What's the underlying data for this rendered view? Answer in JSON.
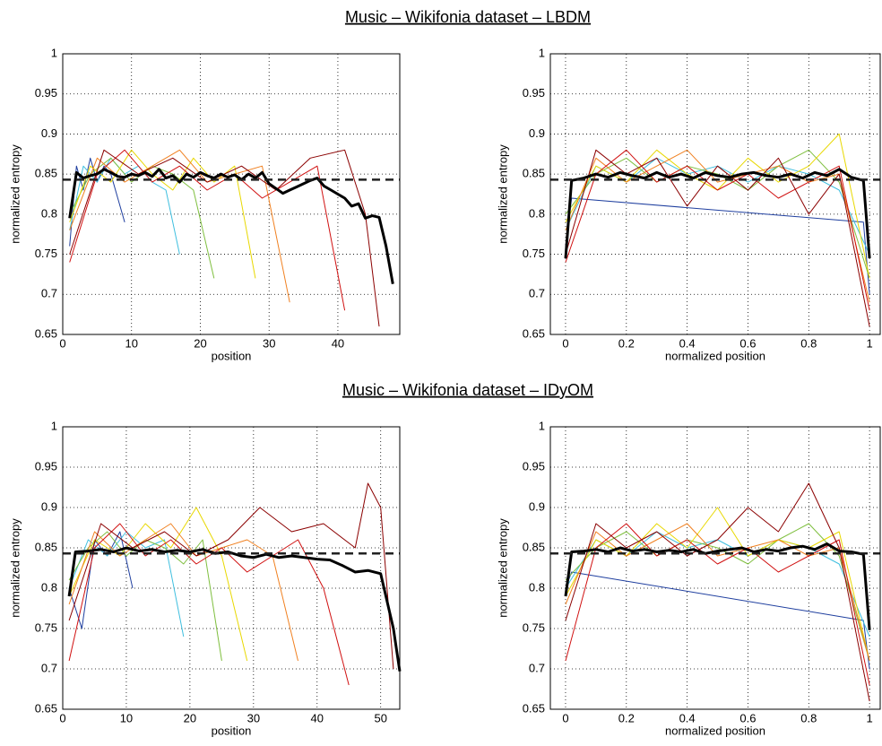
{
  "chart_data": [
    {
      "type": "line",
      "title": "Music – Wikifonia dataset – LBDM",
      "xlabel": "position",
      "ylabel": "normalized entropy",
      "xlim": [
        0,
        49
      ],
      "ylim": [
        0.65,
        1
      ],
      "xticks": [
        0,
        10,
        20,
        30,
        40
      ],
      "yticks": [
        0.65,
        0.7,
        0.75,
        0.8,
        0.85,
        0.9,
        0.95,
        1
      ],
      "grid": true,
      "reference_line": {
        "value": 0.843,
        "color": "#222222"
      },
      "series": [
        {
          "color": "#1f3f9f",
          "x": [
            1,
            2,
            3,
            4,
            5,
            6,
            7,
            8,
            9
          ],
          "values": [
            0.76,
            0.86,
            0.83,
            0.87,
            0.84,
            0.86,
            0.85,
            0.82,
            0.79
          ]
        },
        {
          "color": "#3fbfdf",
          "x": [
            1,
            3,
            5,
            7,
            9,
            11,
            13,
            15,
            17
          ],
          "values": [
            0.78,
            0.86,
            0.84,
            0.87,
            0.85,
            0.86,
            0.84,
            0.83,
            0.75
          ]
        },
        {
          "color": "#7fbf3f",
          "x": [
            1,
            4,
            7,
            10,
            13,
            16,
            19,
            22
          ],
          "values": [
            0.8,
            0.85,
            0.87,
            0.84,
            0.86,
            0.85,
            0.83,
            0.72
          ]
        },
        {
          "color": "#e8d800",
          "x": [
            1,
            4,
            7,
            10,
            13,
            16,
            19,
            22,
            25,
            28
          ],
          "values": [
            0.79,
            0.86,
            0.84,
            0.88,
            0.85,
            0.83,
            0.87,
            0.84,
            0.86,
            0.72
          ]
        },
        {
          "color": "#f08020",
          "x": [
            1,
            5,
            9,
            13,
            17,
            21,
            25,
            29,
            33
          ],
          "values": [
            0.78,
            0.87,
            0.84,
            0.86,
            0.88,
            0.84,
            0.85,
            0.86,
            0.69
          ]
        },
        {
          "color": "#d01010",
          "x": [
            1,
            5,
            9,
            13,
            17,
            21,
            25,
            29,
            33,
            37,
            41
          ],
          "values": [
            0.74,
            0.85,
            0.88,
            0.84,
            0.86,
            0.83,
            0.85,
            0.82,
            0.84,
            0.86,
            0.68
          ]
        },
        {
          "color": "#8b0000",
          "x": [
            1,
            6,
            11,
            16,
            21,
            26,
            31,
            36,
            41,
            44,
            46
          ],
          "values": [
            0.75,
            0.88,
            0.85,
            0.87,
            0.84,
            0.86,
            0.83,
            0.87,
            0.88,
            0.8,
            0.66
          ]
        },
        {
          "color": "#000000",
          "width": 3,
          "x": [
            1,
            2,
            3,
            4,
            5,
            6,
            7,
            8,
            9,
            10,
            11,
            12,
            13,
            14,
            15,
            16,
            17,
            18,
            19,
            20,
            21,
            22,
            23,
            24,
            25,
            26,
            27,
            28,
            29,
            30,
            31,
            32,
            33,
            34,
            35,
            36,
            37,
            38,
            39,
            40,
            41,
            42,
            43,
            44,
            45,
            46,
            47,
            48
          ],
          "values": [
            0.795,
            0.852,
            0.845,
            0.848,
            0.85,
            0.856,
            0.852,
            0.847,
            0.846,
            0.85,
            0.848,
            0.852,
            0.847,
            0.856,
            0.845,
            0.848,
            0.84,
            0.85,
            0.846,
            0.852,
            0.848,
            0.845,
            0.85,
            0.846,
            0.849,
            0.843,
            0.85,
            0.845,
            0.852,
            0.838,
            0.832,
            0.826,
            0.83,
            0.834,
            0.838,
            0.842,
            0.845,
            0.835,
            0.83,
            0.825,
            0.82,
            0.81,
            0.813,
            0.795,
            0.798,
            0.796,
            0.76,
            0.713
          ]
        }
      ]
    },
    {
      "type": "line",
      "xlabel": "normalized position",
      "ylabel": "normalized entropy",
      "xlim": [
        -0.05,
        1.035
      ],
      "ylim": [
        0.65,
        1
      ],
      "xticks": [
        0,
        0.2,
        0.4,
        0.6,
        0.8,
        1
      ],
      "yticks": [
        0.65,
        0.7,
        0.75,
        0.8,
        0.85,
        0.9,
        0.95,
        1
      ],
      "grid": true,
      "reference_line": {
        "value": 0.843,
        "color": "#222222"
      },
      "series": [
        {
          "color": "#1f3f9f",
          "x": [
            0,
            0.02,
            0.98,
            1
          ],
          "values": [
            0.76,
            0.82,
            0.79,
            0.7
          ]
        },
        {
          "color": "#3fbfdf",
          "x": [
            0,
            0.1,
            0.2,
            0.3,
            0.4,
            0.5,
            0.6,
            0.7,
            0.8,
            0.9,
            1
          ],
          "values": [
            0.78,
            0.86,
            0.84,
            0.87,
            0.85,
            0.86,
            0.84,
            0.86,
            0.85,
            0.83,
            0.75
          ]
        },
        {
          "color": "#7fbf3f",
          "x": [
            0,
            0.1,
            0.2,
            0.3,
            0.4,
            0.5,
            0.6,
            0.7,
            0.8,
            0.9,
            1
          ],
          "values": [
            0.8,
            0.85,
            0.87,
            0.84,
            0.86,
            0.85,
            0.83,
            0.86,
            0.88,
            0.84,
            0.72
          ]
        },
        {
          "color": "#e8d800",
          "x": [
            0,
            0.1,
            0.2,
            0.3,
            0.4,
            0.5,
            0.6,
            0.7,
            0.8,
            0.9,
            1
          ],
          "values": [
            0.79,
            0.86,
            0.84,
            0.88,
            0.85,
            0.83,
            0.87,
            0.84,
            0.86,
            0.9,
            0.72
          ]
        },
        {
          "color": "#f08020",
          "x": [
            0,
            0.1,
            0.2,
            0.3,
            0.4,
            0.5,
            0.6,
            0.7,
            0.8,
            0.9,
            1
          ],
          "values": [
            0.78,
            0.87,
            0.84,
            0.86,
            0.88,
            0.84,
            0.85,
            0.86,
            0.84,
            0.85,
            0.69
          ]
        },
        {
          "color": "#d01010",
          "x": [
            0,
            0.1,
            0.2,
            0.3,
            0.4,
            0.5,
            0.6,
            0.7,
            0.8,
            0.9,
            1
          ],
          "values": [
            0.74,
            0.85,
            0.88,
            0.84,
            0.86,
            0.83,
            0.85,
            0.82,
            0.84,
            0.86,
            0.68
          ]
        },
        {
          "color": "#8b0000",
          "x": [
            0,
            0.1,
            0.2,
            0.3,
            0.4,
            0.5,
            0.6,
            0.7,
            0.8,
            0.9,
            1
          ],
          "values": [
            0.75,
            0.88,
            0.85,
            0.87,
            0.81,
            0.86,
            0.83,
            0.87,
            0.8,
            0.85,
            0.66
          ]
        },
        {
          "color": "#000000",
          "width": 3,
          "x": [
            0,
            0.02,
            0.06,
            0.1,
            0.14,
            0.18,
            0.22,
            0.26,
            0.3,
            0.34,
            0.38,
            0.42,
            0.46,
            0.5,
            0.54,
            0.58,
            0.62,
            0.66,
            0.7,
            0.74,
            0.78,
            0.82,
            0.86,
            0.9,
            0.94,
            0.98,
            1
          ],
          "values": [
            0.745,
            0.842,
            0.845,
            0.85,
            0.846,
            0.852,
            0.848,
            0.845,
            0.852,
            0.846,
            0.85,
            0.845,
            0.852,
            0.848,
            0.846,
            0.85,
            0.852,
            0.848,
            0.846,
            0.85,
            0.845,
            0.852,
            0.848,
            0.856,
            0.846,
            0.842,
            0.745
          ]
        }
      ]
    },
    {
      "type": "line",
      "title": "Music – Wikifonia dataset – IDyOM",
      "xlabel": "position",
      "ylabel": "normalized entropy",
      "xlim": [
        0,
        53
      ],
      "ylim": [
        0.65,
        1
      ],
      "xticks": [
        0,
        10,
        20,
        30,
        40,
        50
      ],
      "yticks": [
        0.65,
        0.7,
        0.75,
        0.8,
        0.85,
        0.9,
        0.95,
        1
      ],
      "grid": true,
      "reference_line": {
        "value": 0.843,
        "color": "#222222"
      },
      "series": [
        {
          "color": "#1f3f9f",
          "x": [
            1,
            3,
            5,
            7,
            9,
            11
          ],
          "values": [
            0.8,
            0.75,
            0.86,
            0.84,
            0.87,
            0.8
          ]
        },
        {
          "color": "#3fbfdf",
          "x": [
            1,
            4,
            7,
            10,
            13,
            16,
            19
          ],
          "values": [
            0.8,
            0.86,
            0.84,
            0.87,
            0.85,
            0.86,
            0.74
          ]
        },
        {
          "color": "#7fbf3f",
          "x": [
            1,
            4,
            7,
            10,
            13,
            16,
            19,
            22,
            25
          ],
          "values": [
            0.81,
            0.85,
            0.87,
            0.84,
            0.86,
            0.85,
            0.83,
            0.86,
            0.71
          ]
        },
        {
          "color": "#e8d800",
          "x": [
            1,
            5,
            9,
            13,
            17,
            21,
            25,
            29
          ],
          "values": [
            0.79,
            0.86,
            0.84,
            0.88,
            0.85,
            0.9,
            0.84,
            0.71
          ]
        },
        {
          "color": "#f08020",
          "x": [
            1,
            5,
            9,
            13,
            17,
            21,
            25,
            29,
            33,
            37
          ],
          "values": [
            0.78,
            0.87,
            0.84,
            0.86,
            0.88,
            0.84,
            0.85,
            0.86,
            0.84,
            0.71
          ]
        },
        {
          "color": "#d01010",
          "x": [
            1,
            5,
            9,
            13,
            17,
            21,
            25,
            29,
            33,
            37,
            41,
            45
          ],
          "values": [
            0.71,
            0.85,
            0.88,
            0.84,
            0.86,
            0.83,
            0.85,
            0.82,
            0.84,
            0.86,
            0.8,
            0.68
          ]
        },
        {
          "color": "#8b0000",
          "x": [
            1,
            6,
            11,
            16,
            21,
            26,
            31,
            36,
            41,
            46,
            48,
            50,
            52
          ],
          "values": [
            0.76,
            0.88,
            0.85,
            0.87,
            0.84,
            0.86,
            0.9,
            0.87,
            0.88,
            0.85,
            0.93,
            0.9,
            0.7
          ]
        },
        {
          "color": "#000000",
          "width": 3,
          "x": [
            1,
            2,
            4,
            6,
            8,
            10,
            12,
            14,
            16,
            18,
            20,
            22,
            24,
            26,
            28,
            30,
            32,
            34,
            36,
            38,
            40,
            42,
            44,
            46,
            48,
            50,
            52,
            53
          ],
          "values": [
            0.79,
            0.845,
            0.846,
            0.848,
            0.845,
            0.85,
            0.846,
            0.848,
            0.845,
            0.847,
            0.845,
            0.848,
            0.843,
            0.845,
            0.84,
            0.838,
            0.842,
            0.838,
            0.84,
            0.838,
            0.836,
            0.835,
            0.828,
            0.82,
            0.822,
            0.818,
            0.75,
            0.697
          ]
        }
      ]
    },
    {
      "type": "line",
      "xlabel": "normalized position",
      "ylabel": "normalized entropy",
      "xlim": [
        -0.05,
        1.035
      ],
      "ylim": [
        0.65,
        1
      ],
      "xticks": [
        0,
        0.2,
        0.4,
        0.6,
        0.8,
        1
      ],
      "yticks": [
        0.65,
        0.7,
        0.75,
        0.8,
        0.85,
        0.9,
        0.95,
        1
      ],
      "grid": true,
      "reference_line": {
        "value": 0.843,
        "color": "#222222"
      },
      "series": [
        {
          "color": "#1f3f9f",
          "x": [
            0,
            0.02,
            0.98,
            1
          ],
          "values": [
            0.8,
            0.82,
            0.76,
            0.7
          ]
        },
        {
          "color": "#3fbfdf",
          "x": [
            0,
            0.1,
            0.2,
            0.3,
            0.4,
            0.5,
            0.6,
            0.7,
            0.8,
            0.9,
            1
          ],
          "values": [
            0.8,
            0.86,
            0.84,
            0.87,
            0.85,
            0.86,
            0.84,
            0.86,
            0.85,
            0.83,
            0.74
          ]
        },
        {
          "color": "#7fbf3f",
          "x": [
            0,
            0.1,
            0.2,
            0.3,
            0.4,
            0.5,
            0.6,
            0.7,
            0.8,
            0.9,
            1
          ],
          "values": [
            0.81,
            0.85,
            0.87,
            0.84,
            0.86,
            0.85,
            0.83,
            0.86,
            0.88,
            0.84,
            0.71
          ]
        },
        {
          "color": "#e8d800",
          "x": [
            0,
            0.1,
            0.2,
            0.3,
            0.4,
            0.5,
            0.6,
            0.7,
            0.8,
            0.9,
            1
          ],
          "values": [
            0.79,
            0.86,
            0.84,
            0.88,
            0.85,
            0.9,
            0.84,
            0.86,
            0.85,
            0.87,
            0.71
          ]
        },
        {
          "color": "#f08020",
          "x": [
            0,
            0.1,
            0.2,
            0.3,
            0.4,
            0.5,
            0.6,
            0.7,
            0.8,
            0.9,
            1
          ],
          "values": [
            0.78,
            0.87,
            0.84,
            0.86,
            0.88,
            0.84,
            0.85,
            0.86,
            0.84,
            0.85,
            0.71
          ]
        },
        {
          "color": "#d01010",
          "x": [
            0,
            0.1,
            0.2,
            0.3,
            0.4,
            0.5,
            0.6,
            0.7,
            0.8,
            0.9,
            1
          ],
          "values": [
            0.71,
            0.85,
            0.88,
            0.84,
            0.86,
            0.83,
            0.85,
            0.82,
            0.84,
            0.86,
            0.68
          ]
        },
        {
          "color": "#8b0000",
          "x": [
            0,
            0.1,
            0.2,
            0.3,
            0.4,
            0.5,
            0.6,
            0.7,
            0.8,
            0.9,
            1
          ],
          "values": [
            0.76,
            0.88,
            0.85,
            0.87,
            0.84,
            0.86,
            0.9,
            0.87,
            0.93,
            0.85,
            0.66
          ]
        },
        {
          "color": "#000000",
          "width": 3,
          "x": [
            0,
            0.02,
            0.06,
            0.1,
            0.14,
            0.18,
            0.22,
            0.26,
            0.3,
            0.34,
            0.38,
            0.42,
            0.46,
            0.5,
            0.54,
            0.58,
            0.62,
            0.66,
            0.7,
            0.74,
            0.78,
            0.82,
            0.86,
            0.9,
            0.94,
            0.98,
            1
          ],
          "values": [
            0.79,
            0.845,
            0.846,
            0.848,
            0.845,
            0.85,
            0.846,
            0.848,
            0.845,
            0.847,
            0.845,
            0.848,
            0.843,
            0.846,
            0.848,
            0.85,
            0.845,
            0.848,
            0.846,
            0.85,
            0.852,
            0.848,
            0.855,
            0.846,
            0.845,
            0.842,
            0.748
          ]
        }
      ]
    }
  ]
}
